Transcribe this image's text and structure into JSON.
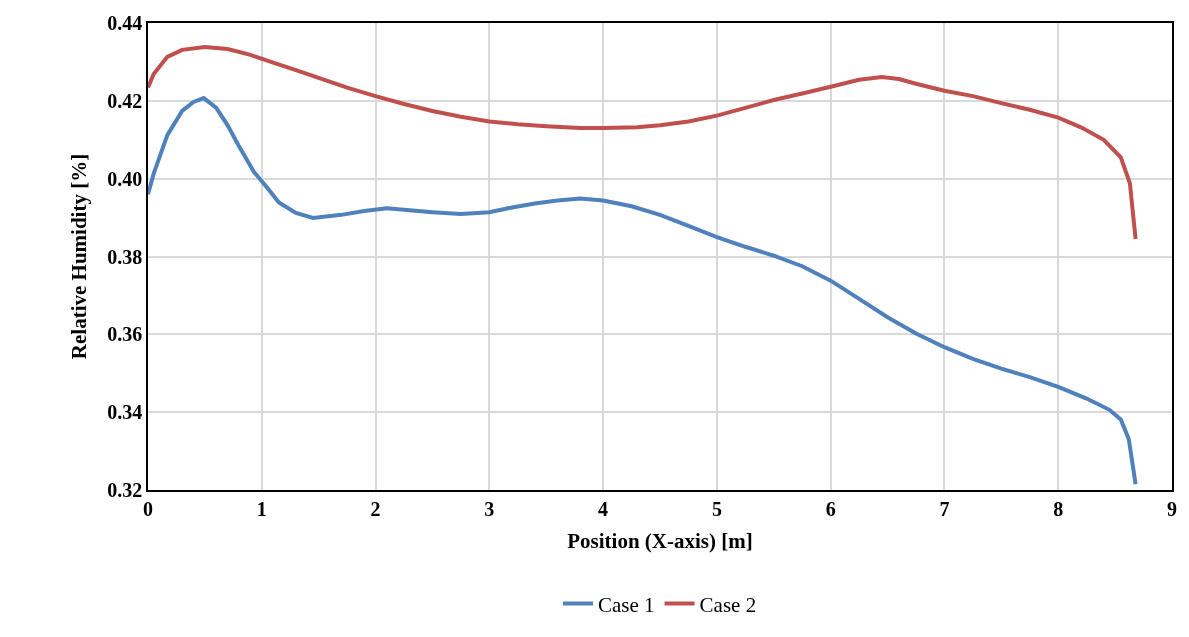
{
  "chart_data": {
    "type": "line",
    "xlabel": "Position (X-axis) [m]",
    "ylabel": "Relative Humidity [%]",
    "xlim": [
      0,
      9
    ],
    "xticks": [
      0,
      1,
      2,
      3,
      4,
      5,
      6,
      7,
      8,
      9
    ],
    "ylim": [
      0.32,
      0.44
    ],
    "yticks": [
      {
        "value": 0.32,
        "label": "0.32"
      },
      {
        "value": 0.34,
        "label": "0.34"
      },
      {
        "value": 0.36,
        "label": "0.36"
      },
      {
        "value": 0.38,
        "label": "0.38"
      },
      {
        "value": 0.4,
        "label": "0.40"
      },
      {
        "value": 0.42,
        "label": "0.42"
      },
      {
        "value": 0.44,
        "label": "0.44"
      }
    ],
    "grid": true,
    "legend": "bottom",
    "marker": "none",
    "line_style": "solid",
    "series": [
      {
        "name": "Case 1",
        "color": "#4f81bd",
        "x": [
          0,
          0.05,
          0.17,
          0.3,
          0.4,
          0.49,
          0.6,
          0.7,
          0.8,
          0.93,
          1.05,
          1.15,
          1.3,
          1.45,
          1.7,
          1.9,
          2.1,
          2.3,
          2.5,
          2.75,
          3.0,
          3.2,
          3.4,
          3.6,
          3.8,
          4.0,
          4.25,
          4.5,
          4.75,
          5.0,
          5.25,
          5.5,
          5.75,
          6.0,
          6.25,
          6.5,
          6.75,
          7.0,
          7.25,
          7.5,
          7.75,
          8.0,
          8.25,
          8.45,
          8.55,
          8.62,
          8.68
        ],
        "values": [
          0.396,
          0.4013,
          0.4112,
          0.4174,
          0.4197,
          0.4207,
          0.4182,
          0.4137,
          0.4083,
          0.4018,
          0.3976,
          0.3939,
          0.3912,
          0.3899,
          0.3907,
          0.3917,
          0.3924,
          0.3919,
          0.3914,
          0.3909,
          0.3914,
          0.3926,
          0.3936,
          0.3944,
          0.3949,
          0.3944,
          0.3929,
          0.3907,
          0.3879,
          0.385,
          0.3825,
          0.3802,
          0.3775,
          0.3738,
          0.3691,
          0.3644,
          0.3602,
          0.3567,
          0.3537,
          0.3512,
          0.349,
          0.3465,
          0.3435,
          0.3406,
          0.3381,
          0.3331,
          0.3215
        ]
      },
      {
        "name": "Case 2",
        "color": "#c0504d",
        "x": [
          0,
          0.05,
          0.17,
          0.3,
          0.5,
          0.7,
          0.9,
          1.1,
          1.3,
          1.5,
          1.75,
          2.0,
          2.25,
          2.5,
          2.75,
          3.0,
          3.25,
          3.5,
          3.8,
          4.0,
          4.3,
          4.5,
          4.75,
          5.0,
          5.25,
          5.5,
          5.75,
          6.0,
          6.25,
          6.45,
          6.6,
          6.75,
          7.0,
          7.25,
          7.5,
          7.75,
          8.0,
          8.2,
          8.4,
          8.55,
          8.63,
          8.68
        ],
        "values": [
          0.4234,
          0.4269,
          0.4313,
          0.4331,
          0.4338,
          0.4333,
          0.4318,
          0.4298,
          0.4279,
          0.4259,
          0.4234,
          0.4212,
          0.4192,
          0.4174,
          0.4159,
          0.4147,
          0.414,
          0.4135,
          0.413,
          0.413,
          0.4132,
          0.4137,
          0.4147,
          0.4162,
          0.4182,
          0.4202,
          0.4219,
          0.4236,
          0.4254,
          0.4261,
          0.4256,
          0.4244,
          0.4226,
          0.4212,
          0.4194,
          0.4177,
          0.4157,
          0.4132,
          0.41,
          0.4055,
          0.3988,
          0.3845
        ]
      }
    ]
  }
}
